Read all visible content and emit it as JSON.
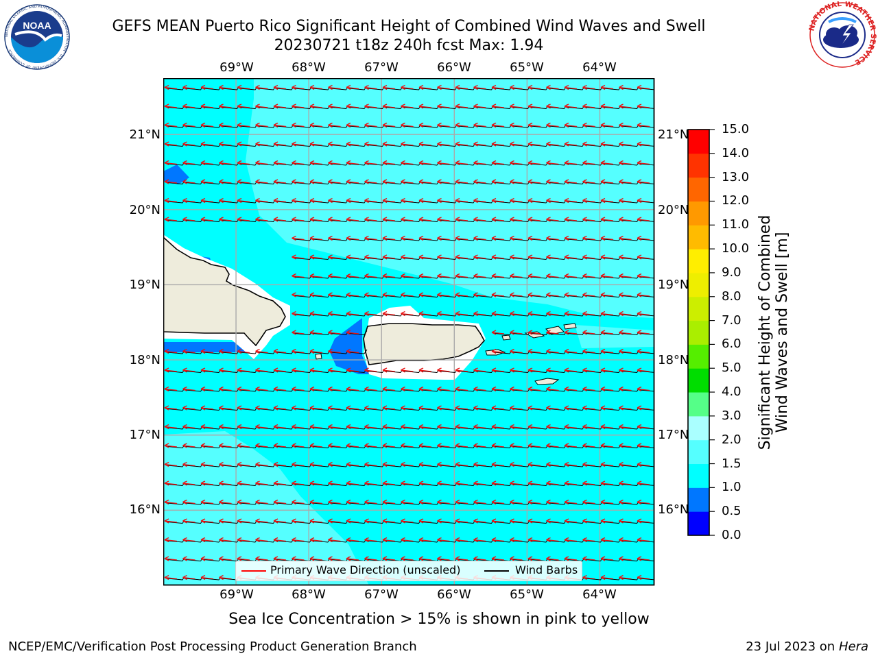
{
  "header": {
    "title_line1": "GEFS MEAN Puerto Rico Significant Height of Combined Wind Waves and Swell",
    "title_line2": "20230721 t18z 240h fcst   Max: 1.94"
  },
  "logos": {
    "noaa_text": "NOAA",
    "noaa_ring_text": "NATIONAL OCEANIC AND ATMOSPHERIC ADMINISTRATION · U.S. DEPARTMENT OF COMMERCE",
    "nws_ring_text": "NATIONAL WEATHER SERVICE"
  },
  "map": {
    "lon_labels": [
      "69°W",
      "68°W",
      "67°W",
      "66°W",
      "65°W",
      "64°W"
    ],
    "lat_labels": [
      "21°N",
      "20°N",
      "19°N",
      "18°N",
      "17°N",
      "16°N"
    ],
    "lon_range": [
      -70.0,
      -63.25
    ],
    "lat_range": [
      15.0,
      21.75
    ],
    "gridlines": true,
    "wind_direction": "east",
    "wave_direction": "west"
  },
  "legend": {
    "wave_label": "Primary Wave Direction (unscaled)",
    "barb_label": "Wind Barbs",
    "wave_color": "#ff0000",
    "barb_color": "#000000"
  },
  "colorbar": {
    "label_line1": "Significant Height of Combined",
    "label_line2": "Wind Waves and Swell [m]",
    "ticks": [
      "15.0",
      "14.0",
      "13.0",
      "12.0",
      "11.0",
      "10.0",
      "9.0",
      "8.0",
      "7.0",
      "6.0",
      "5.0",
      "4.0",
      "3.0",
      "2.0",
      "1.5",
      "1.0",
      "0.5",
      "0.0"
    ],
    "levels_bottom_to_top": [
      {
        "range": "0.0-0.5",
        "color": "#0000ff"
      },
      {
        "range": "0.5-1.0",
        "color": "#0077ff"
      },
      {
        "range": "1.0-1.5",
        "color": "#00ffff"
      },
      {
        "range": "1.5-2.0",
        "color": "#55ffff"
      },
      {
        "range": "2.0-3.0",
        "color": "#aaffff"
      },
      {
        "range": "3.0-4.0",
        "color": "#55ff88"
      },
      {
        "range": "4.0-5.0",
        "color": "#00dd00"
      },
      {
        "range": "5.0-6.0",
        "color": "#55ee00"
      },
      {
        "range": "6.0-7.0",
        "color": "#aaee00"
      },
      {
        "range": "7.0-8.0",
        "color": "#ccee00"
      },
      {
        "range": "8.0-9.0",
        "color": "#eeee00"
      },
      {
        "range": "9.0-10.0",
        "color": "#ffee00"
      },
      {
        "range": "10.0-11.0",
        "color": "#ffbb00"
      },
      {
        "range": "11.0-12.0",
        "color": "#ff9900"
      },
      {
        "range": "12.0-13.0",
        "color": "#ff6600"
      },
      {
        "range": "13.0-14.0",
        "color": "#ff3300"
      },
      {
        "range": "14.0-15.0",
        "color": "#ff0000"
      }
    ]
  },
  "caption": "Sea Ice Concentration > 15% is shown in pink to yellow",
  "footer": {
    "left": "NCEP/EMC/Verification Post Processing Product Generation Branch",
    "date": "23 Jul 2023 on ",
    "host": "Hera"
  }
}
